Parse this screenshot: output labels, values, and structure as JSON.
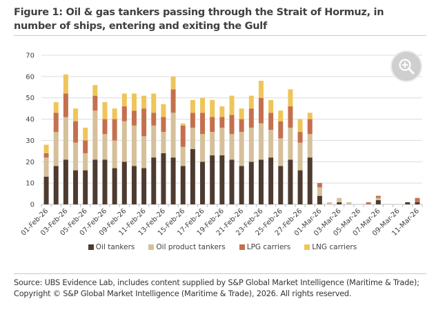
{
  "title": "Figure 1: Oil & gas tankers passing through the Strait of Hormuz, in number of ships, entering and exiting the Gulf",
  "source": "Source: UBS Evidence Lab, includes content supplied by S&P Global Market Intelligence (Maritime & Trade); Copyright © S&P Global Market Intelligence (Maritime & Trade), 2026. All rights reserved.",
  "zoom_icon": "magnifier-plus-icon",
  "chart_data": {
    "type": "bar",
    "stacked": true,
    "title": "",
    "xlabel": "",
    "ylabel": "",
    "ylim": [
      0,
      70
    ],
    "yticks": [
      0,
      10,
      20,
      30,
      40,
      50,
      60,
      70
    ],
    "grid": true,
    "legend": "bottom",
    "categories": [
      "01-Feb-26",
      "02-Feb-26",
      "03-Feb-26",
      "04-Feb-26",
      "05-Feb-26",
      "06-Feb-26",
      "07-Feb-26",
      "08-Feb-26",
      "09-Feb-26",
      "10-Feb-26",
      "11-Feb-26",
      "12-Feb-26",
      "13-Feb-26",
      "14-Feb-26",
      "15-Feb-26",
      "16-Feb-26",
      "17-Feb-26",
      "18-Feb-26",
      "19-Feb-26",
      "20-Feb-26",
      "21-Feb-26",
      "22-Feb-26",
      "23-Feb-26",
      "24-Feb-26",
      "25-Feb-26",
      "26-Feb-26",
      "27-Feb-26",
      "28-Feb-26",
      "01-Mar-26",
      "02-Mar-26",
      "03-Mar-26",
      "04-Mar-26",
      "05-Mar-26",
      "06-Mar-26",
      "07-Mar-26",
      "08-Mar-26",
      "09-Mar-26",
      "10-Mar-26",
      "11-Mar-26"
    ],
    "xtick_labels": [
      "01-Feb-26",
      "03-Feb-26",
      "05-Feb-26",
      "07-Feb-26",
      "09-Feb-26",
      "11-Feb-26",
      "13-Feb-26",
      "15-Feb-26",
      "17-Feb-26",
      "19-Feb-26",
      "21-Feb-26",
      "23-Feb-26",
      "25-Feb-26",
      "27-Feb-26",
      "01-Mar-26",
      "03-Mar-26",
      "05-Mar-26",
      "07-Mar-26",
      "09-Mar-26",
      "11-Mar-26"
    ],
    "series": [
      {
        "name": "Oil tankers",
        "color": "#4e3b30",
        "values": [
          13,
          18,
          21,
          16,
          16,
          21,
          21,
          17,
          20,
          18,
          17,
          22,
          24,
          22,
          18,
          26,
          20,
          23,
          23,
          21,
          18,
          20,
          21,
          22,
          18,
          21,
          16,
          22,
          4,
          0,
          1,
          0,
          0,
          0,
          2,
          0,
          0,
          1,
          1
        ]
      },
      {
        "name": "Oil product tankers",
        "color": "#d5c09a",
        "values": [
          9,
          16,
          20,
          13,
          8,
          23,
          12,
          13,
          19,
          19,
          15,
          15,
          10,
          21,
          9,
          10,
          13,
          11,
          13,
          12,
          16,
          16,
          17,
          13,
          13,
          15,
          13,
          11,
          4,
          1,
          2,
          1,
          0,
          0,
          1,
          0,
          0,
          0,
          0
        ]
      },
      {
        "name": "LPG carriers",
        "color": "#c4704f",
        "values": [
          2,
          9,
          11,
          10,
          6,
          7,
          7,
          10,
          7,
          7,
          13,
          6,
          7,
          11,
          10,
          7,
          10,
          7,
          5,
          9,
          6,
          9,
          12,
          8,
          8,
          10,
          5,
          7,
          2,
          0,
          0,
          0,
          0,
          1,
          1,
          0,
          0,
          0,
          2
        ]
      },
      {
        "name": "LNG carriers",
        "color": "#efc55a",
        "values": [
          4,
          5,
          9,
          6,
          6,
          5,
          8,
          5,
          6,
          8,
          6,
          9,
          6,
          6,
          1,
          6,
          7,
          8,
          5,
          9,
          5,
          6,
          8,
          6,
          5,
          8,
          6,
          3,
          0,
          0,
          0,
          0,
          0,
          0,
          0,
          0,
          0,
          0,
          0
        ]
      }
    ]
  }
}
